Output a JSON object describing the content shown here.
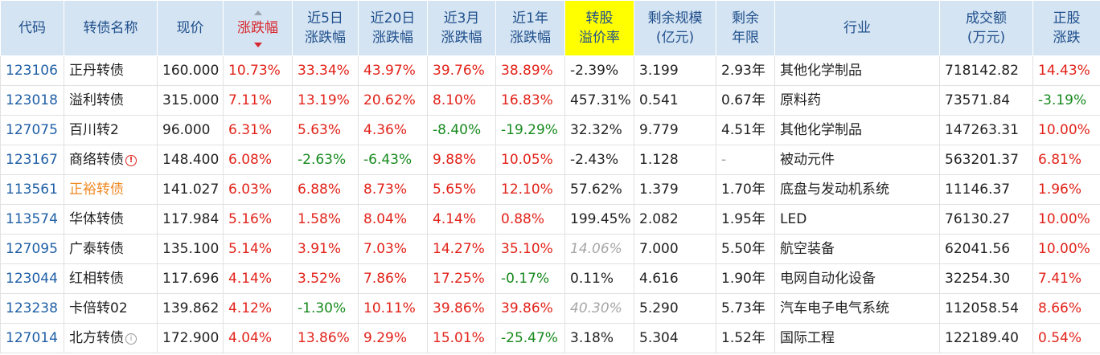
{
  "header": {
    "code": "代码",
    "name": "转债名称",
    "price": "现价",
    "change": "涨跌幅",
    "chg5_l1": "近5日",
    "chg5_l2": "涨跌幅",
    "chg20_l1": "近20日",
    "chg20_l2": "涨跌幅",
    "chg3m_l1": "近3月",
    "chg3m_l2": "涨跌幅",
    "chg1y_l1": "近1年",
    "chg1y_l2": "涨跌幅",
    "premium_l1": "转股",
    "premium_l2": "溢价率",
    "scale_l1": "剩余规模",
    "scale_l2": "(亿元)",
    "years_l1": "剩余",
    "years_l2": "年限",
    "industry": "行业",
    "turnover_l1": "成交额",
    "turnover_l2": "(万元)",
    "stock_l1": "正股",
    "stock_l2": "涨跌"
  },
  "rows": [
    {
      "code": "123106",
      "name": "正丹转债",
      "price": "160.000",
      "change": "10.73%",
      "chg5": "33.34%",
      "chg20": "43.97%",
      "chg3m": "39.76%",
      "chg1y": "38.89%",
      "premium": "-2.39%",
      "scale": "3.199",
      "years": "2.93年",
      "industry": "其他化学制品",
      "turnover": "718142.82",
      "stock": "14.43%"
    },
    {
      "code": "123018",
      "name": "溢利转债",
      "price": "315.000",
      "change": "7.11%",
      "chg5": "13.19%",
      "chg20": "20.62%",
      "chg3m": "8.10%",
      "chg1y": "16.83%",
      "premium": "457.31%",
      "scale": "0.541",
      "years": "0.67年",
      "industry": "原料药",
      "turnover": "73571.84",
      "stock": "-3.19%"
    },
    {
      "code": "127075",
      "name": "百川转2",
      "price": "96.000",
      "change": "6.31%",
      "chg5": "5.63%",
      "chg20": "4.36%",
      "chg3m": "-8.40%",
      "chg1y": "-19.29%",
      "premium": "32.32%",
      "scale": "9.779",
      "years": "4.51年",
      "industry": "其他化学制品",
      "turnover": "147263.31",
      "stock": "10.00%"
    },
    {
      "code": "123167",
      "name": "商络转债",
      "price": "148.400",
      "change": "6.08%",
      "chg5": "-2.63%",
      "chg20": "-6.43%",
      "chg3m": "9.88%",
      "chg1y": "10.05%",
      "premium": "-2.43%",
      "scale": "1.128",
      "years": "-",
      "industry": "被动元件",
      "turnover": "563201.37",
      "stock": "6.81%"
    },
    {
      "code": "113561",
      "name": "正裕转债",
      "price": "141.027",
      "change": "6.03%",
      "chg5": "6.88%",
      "chg20": "8.73%",
      "chg3m": "5.65%",
      "chg1y": "12.10%",
      "premium": "57.62%",
      "scale": "1.379",
      "years": "1.70年",
      "industry": "底盘与发动机系统",
      "turnover": "11146.37",
      "stock": "1.96%"
    },
    {
      "code": "113574",
      "name": "华体转债",
      "price": "117.984",
      "change": "5.16%",
      "chg5": "1.58%",
      "chg20": "8.04%",
      "chg3m": "4.14%",
      "chg1y": "0.88%",
      "premium": "199.45%",
      "scale": "2.082",
      "years": "1.95年",
      "industry": "LED",
      "turnover": "76130.27",
      "stock": "10.00%"
    },
    {
      "code": "127095",
      "name": "广泰转债",
      "price": "135.100",
      "change": "5.14%",
      "chg5": "3.91%",
      "chg20": "7.03%",
      "chg3m": "14.27%",
      "chg1y": "35.10%",
      "premium": "14.06%",
      "scale": "7.000",
      "years": "5.50年",
      "industry": "航空装备",
      "turnover": "62041.56",
      "stock": "10.00%"
    },
    {
      "code": "123044",
      "name": "红相转债",
      "price": "117.696",
      "change": "4.14%",
      "chg5": "3.52%",
      "chg20": "7.86%",
      "chg3m": "17.25%",
      "chg1y": "-0.17%",
      "premium": "0.11%",
      "scale": "4.616",
      "years": "1.90年",
      "industry": "电网自动化设备",
      "turnover": "32254.30",
      "stock": "7.41%"
    },
    {
      "code": "123238",
      "name": "卡倍转02",
      "price": "139.862",
      "change": "4.12%",
      "chg5": "-1.30%",
      "chg20": "10.11%",
      "chg3m": "39.86%",
      "chg1y": "39.86%",
      "premium": "40.30%",
      "scale": "5.290",
      "years": "5.73年",
      "industry": "汽车电子电气系统",
      "turnover": "112058.54",
      "stock": "8.66%"
    },
    {
      "code": "127014",
      "name": "北方转债",
      "price": "172.900",
      "change": "4.04%",
      "chg5": "13.86%",
      "chg20": "9.29%",
      "chg3m": "15.01%",
      "chg1y": "-25.47%",
      "premium": "3.18%",
      "scale": "5.304",
      "years": "1.52年",
      "industry": "国际工程",
      "turnover": "122189.40",
      "stock": "0.54%"
    }
  ],
  "colors": {
    "up": "#e2231a",
    "down": "#178a1e",
    "header_bg": "#d5e4f2",
    "highlight": "#ffff00",
    "code": "#1f5fa6"
  }
}
